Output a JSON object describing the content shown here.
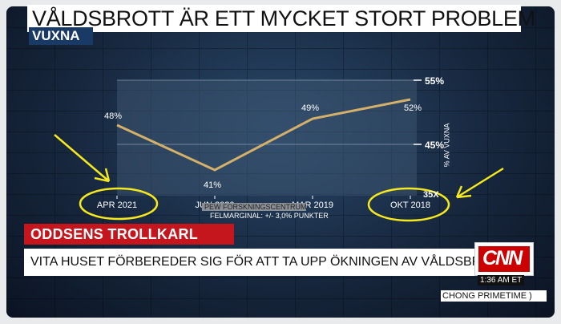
{
  "broadcast": {
    "headline": "VÅLDSBROTT ÄR ETT MYCKET STORT PROBLEM",
    "subheadline": "VUXNA",
    "source": "PEW FORSKNINGSCENTRUM",
    "margin_of_error": "FELMARGINAL: +/- 3,0% PUNKTER",
    "lower_third_title": "ODDSENS TROLLKARL",
    "lower_third_text": "VITA HUSET FÖRBEREDER SIG FÖR ATT TA UPP ÖKNINGEN AV VÅLDSBROTT",
    "network_logo": "CNN",
    "clock": "1:36 AM ET",
    "program": "CHONG PRIMETIME )",
    "partial_label": "35X",
    "colors": {
      "accent_red": "#c4161c",
      "line": "#d4b06a",
      "annotation": "#f5e81e"
    }
  },
  "chart_data": {
    "type": "line",
    "categories": [
      "APR 2021",
      "JUN 2020",
      "MAR 2019",
      "OKT 2018"
    ],
    "values": [
      48,
      41,
      49,
      52
    ],
    "value_labels": [
      "48%",
      "41%",
      "49%",
      "52%"
    ],
    "ylim": [
      37,
      55
    ],
    "yticks": [
      45,
      55
    ],
    "ytick_labels": [
      "45%",
      "55%"
    ],
    "ylabel": "% AV VUXNA",
    "grid": "horizontal"
  }
}
